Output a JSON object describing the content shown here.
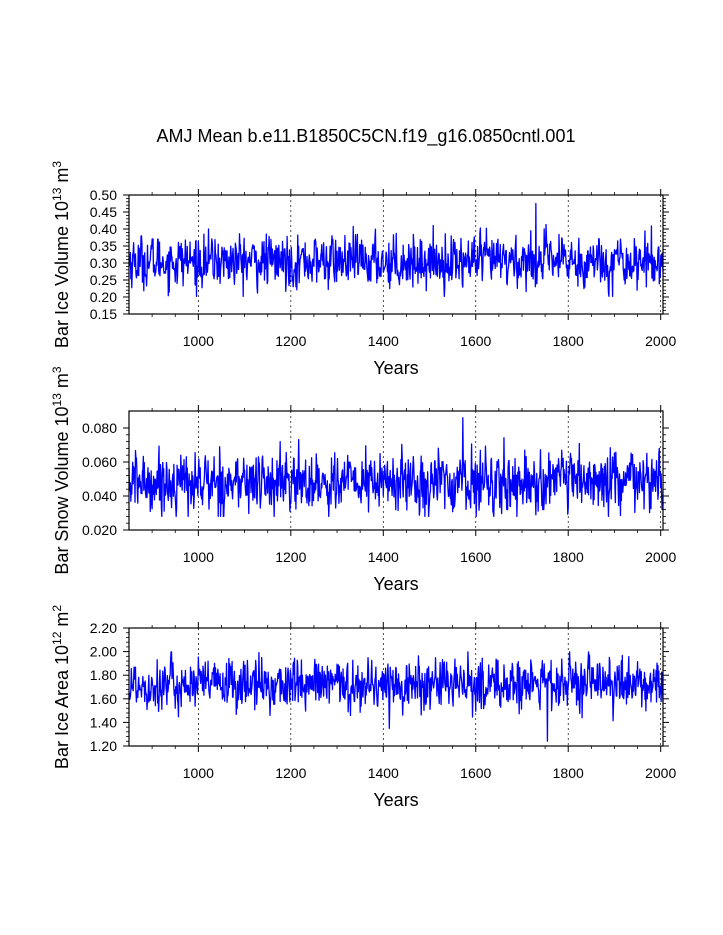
{
  "title": "AMJ Mean b.e11.B1850C5CN.f19_g16.0850cntl.001",
  "line_color": "#0000ff",
  "chart_data": [
    {
      "type": "line",
      "xlabel": "Years",
      "ylabel_main": "Bar Ice Volume 10",
      "ylabel_exp": "13",
      "ylabel_unit": " m",
      "ylabel_unit_exp": "3",
      "xlim": [
        850,
        2005
      ],
      "ylim": [
        0.15,
        0.5
      ],
      "x_ticks": [
        1000,
        1200,
        1400,
        1600,
        1800,
        2000
      ],
      "x_tick_labels": [
        "1000",
        "1200",
        "1400",
        "1600",
        "1800",
        "2000"
      ],
      "y_ticks": [
        0.15,
        0.2,
        0.25,
        0.3,
        0.35,
        0.4,
        0.45,
        0.5
      ],
      "y_tick_labels": [
        "0.15",
        "0.20",
        "0.25",
        "0.30",
        "0.35",
        "0.40",
        "0.45",
        "0.50"
      ],
      "series_summary": {
        "mean": 0.305,
        "min": 0.2,
        "max": 0.475,
        "max_year": 1730
      }
    },
    {
      "type": "line",
      "xlabel": "Years",
      "ylabel_main": "Bar Snow Volume 10",
      "ylabel_exp": "13",
      "ylabel_unit": " m",
      "ylabel_unit_exp": "3",
      "xlim": [
        850,
        2005
      ],
      "ylim": [
        0.02,
        0.09
      ],
      "x_ticks": [
        1000,
        1200,
        1400,
        1600,
        1800,
        2000
      ],
      "x_tick_labels": [
        "1000",
        "1200",
        "1400",
        "1600",
        "1800",
        "2000"
      ],
      "y_ticks": [
        0.02,
        0.04,
        0.06,
        0.08
      ],
      "y_tick_labels": [
        "0.020",
        "0.040",
        "0.060",
        "0.080"
      ],
      "series_summary": {
        "mean": 0.048,
        "min": 0.026,
        "max": 0.086,
        "max_year": 1572
      }
    },
    {
      "type": "line",
      "xlabel": "Years",
      "ylabel_main": "Bar Ice Area 10",
      "ylabel_exp": "12",
      "ylabel_unit": " m",
      "ylabel_unit_exp": "2",
      "xlim": [
        850,
        2005
      ],
      "ylim": [
        1.2,
        2.2
      ],
      "x_ticks": [
        1000,
        1200,
        1400,
        1600,
        1800,
        2000
      ],
      "x_tick_labels": [
        "1000",
        "1200",
        "1400",
        "1600",
        "1800",
        "2000"
      ],
      "y_ticks": [
        1.2,
        1.4,
        1.6,
        1.8,
        2.0,
        2.2
      ],
      "y_tick_labels": [
        "1.20",
        "1.40",
        "1.60",
        "1.80",
        "2.00",
        "2.20"
      ],
      "series_summary": {
        "mean": 1.72,
        "min": 1.24,
        "max": 2.0,
        "min_year": 1755
      }
    }
  ]
}
